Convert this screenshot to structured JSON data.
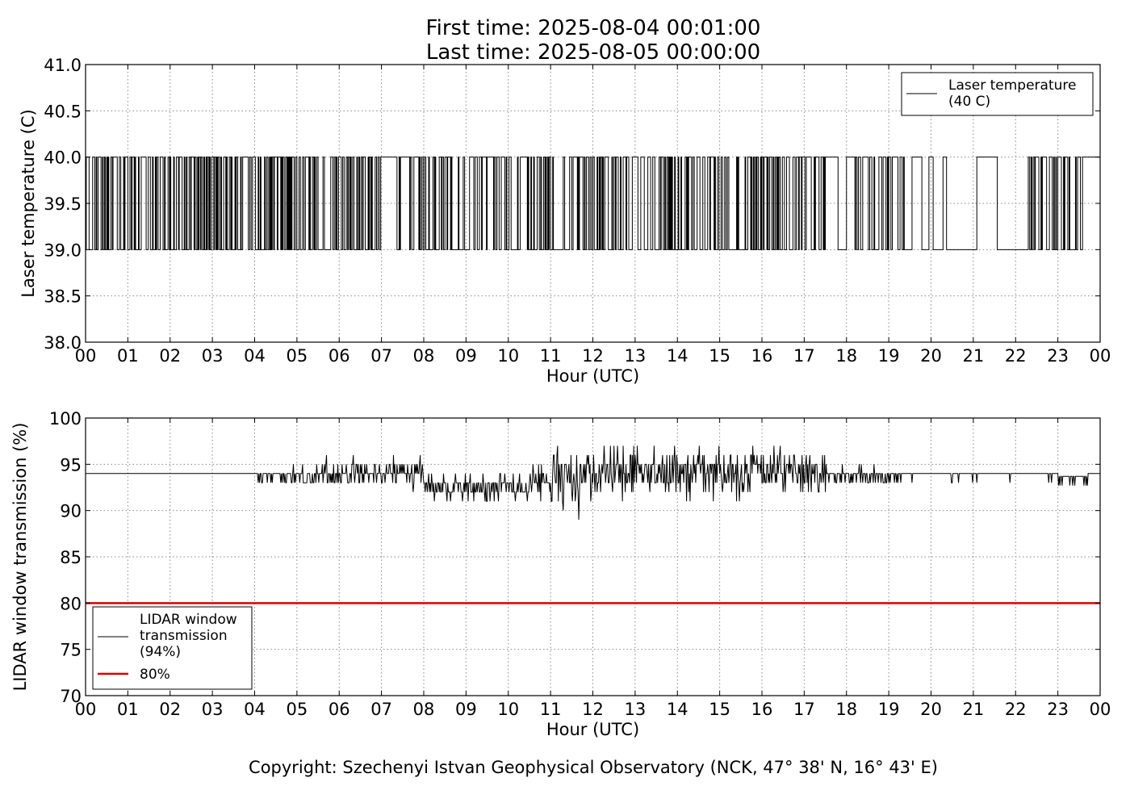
{
  "header": {
    "title_line1": "First time: 2025-08-04 00:01:00",
    "title_line2": "Last time: 2025-08-05 00:00:00"
  },
  "footer": {
    "copyright": "Copyright: Szechenyi Istvan Geophysical Observatory (NCK, 47° 38' N, 16° 43' E)"
  },
  "colors": {
    "series": "#000000",
    "threshold": "#dd0000",
    "grid": "#888888"
  },
  "chart_data": [
    {
      "type": "line",
      "title": "",
      "xlabel": "Hour (UTC)",
      "ylabel": "Laser temperature (C)",
      "xlim": [
        0,
        24
      ],
      "ylim": [
        38.0,
        41.0
      ],
      "x_ticks": [
        "00",
        "01",
        "02",
        "03",
        "04",
        "05",
        "06",
        "07",
        "08",
        "09",
        "10",
        "11",
        "12",
        "13",
        "14",
        "15",
        "16",
        "17",
        "18",
        "19",
        "20",
        "21",
        "22",
        "23",
        "00"
      ],
      "y_ticks": [
        "38.0",
        "38.5",
        "39.0",
        "39.5",
        "40.0",
        "40.5",
        "41.0"
      ],
      "grid": true,
      "legend_position": "top-right",
      "legend": [
        "Laser temperature",
        "(40 C)"
      ],
      "series": [
        {
          "name": "Laser temperature (40 C)",
          "levels": [
            39.0,
            40.0
          ],
          "note_values": "signal toggles between 39.0 and 40.0 C; dense toggling 00-19 h, sparse 19-22 h, dense 22.3-23.6 h, constant 40.0 after 23.6 h",
          "activity": [
            {
              "from": 0.0,
              "to": 7.0,
              "density": 0.85
            },
            {
              "from": 7.0,
              "to": 7.3,
              "density": 0.0
            },
            {
              "from": 7.3,
              "to": 11.1,
              "density": 0.75
            },
            {
              "from": 11.1,
              "to": 11.3,
              "density": 0.1
            },
            {
              "from": 11.3,
              "to": 17.5,
              "density": 0.7
            },
            {
              "from": 17.5,
              "to": 17.8,
              "density": 0.0
            },
            {
              "from": 17.8,
              "to": 18.0,
              "density": 0.3
            },
            {
              "from": 18.0,
              "to": 18.2,
              "density": 0.0
            },
            {
              "from": 18.2,
              "to": 19.4,
              "density": 0.6
            },
            {
              "from": 19.4,
              "to": 22.3,
              "density": 0.08
            },
            {
              "from": 22.3,
              "to": 23.6,
              "density": 0.65
            },
            {
              "from": 23.6,
              "to": 24.0,
              "density": 0.0
            }
          ]
        }
      ]
    },
    {
      "type": "line",
      "title": "",
      "xlabel": "Hour (UTC)",
      "ylabel": "LIDAR window transmission (%)",
      "xlim": [
        0,
        24
      ],
      "ylim": [
        70,
        100
      ],
      "x_ticks": [
        "00",
        "01",
        "02",
        "03",
        "04",
        "05",
        "06",
        "07",
        "08",
        "09",
        "10",
        "11",
        "12",
        "13",
        "14",
        "15",
        "16",
        "17",
        "18",
        "19",
        "20",
        "21",
        "22",
        "23",
        "00"
      ],
      "y_ticks": [
        "70",
        "75",
        "80",
        "85",
        "90",
        "95",
        "100"
      ],
      "grid": true,
      "legend_position": "bottom-left",
      "legend": [
        "LIDAR window",
        "transmission",
        "(94%)",
        "80%"
      ],
      "series": [
        {
          "name": "LIDAR window transmission (94%)",
          "baseline": 94,
          "segments": [
            {
              "from": 0.0,
              "to": 4.0,
              "base": 94,
              "amp": 0
            },
            {
              "from": 4.0,
              "to": 5.5,
              "base": 94,
              "amp": 0.6
            },
            {
              "from": 5.5,
              "to": 8.0,
              "base": 94,
              "amp": 1.1
            },
            {
              "from": 8.0,
              "to": 10.5,
              "base": 92.5,
              "amp": 1.1
            },
            {
              "from": 10.5,
              "to": 11.0,
              "base": 93.0,
              "amp": 1.2
            },
            {
              "from": 11.0,
              "to": 17.6,
              "base": 94.0,
              "amp": 1.9
            },
            {
              "from": 17.6,
              "to": 19.3,
              "base": 94.0,
              "amp": 0.7
            },
            {
              "from": 19.3,
              "to": 23.0,
              "base": 94,
              "amp": 0.05
            },
            {
              "from": 23.0,
              "to": 23.7,
              "base": 93.7,
              "amp": 0.6
            },
            {
              "from": 23.7,
              "to": 24.0,
              "base": 94,
              "amp": 0
            }
          ],
          "spikes": [
            {
              "x": 11.67,
              "y": 89
            },
            {
              "x": 12.72,
              "y": 97
            },
            {
              "x": 15.78,
              "y": 97
            },
            {
              "x": 9.5,
              "y": 91
            },
            {
              "x": 11.95,
              "y": 91
            },
            {
              "x": 14.3,
              "y": 91
            },
            {
              "x": 15.4,
              "y": 91
            },
            {
              "x": 20.65,
              "y": 93
            }
          ]
        },
        {
          "name": "80%",
          "y_constant": 80
        }
      ]
    }
  ]
}
